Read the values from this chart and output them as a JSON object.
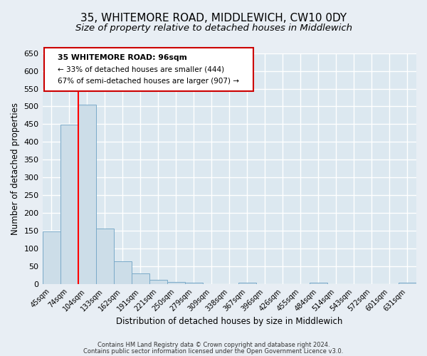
{
  "title": "35, WHITEMORE ROAD, MIDDLEWICH, CW10 0DY",
  "subtitle": "Size of property relative to detached houses in Middlewich",
  "xlabel": "Distribution of detached houses by size in Middlewich",
  "ylabel": "Number of detached properties",
  "bar_labels": [
    "45sqm",
    "74sqm",
    "104sqm",
    "133sqm",
    "162sqm",
    "191sqm",
    "221sqm",
    "250sqm",
    "279sqm",
    "309sqm",
    "338sqm",
    "367sqm",
    "396sqm",
    "426sqm",
    "455sqm",
    "484sqm",
    "514sqm",
    "543sqm",
    "572sqm",
    "601sqm",
    "631sqm"
  ],
  "bar_values": [
    148,
    448,
    505,
    157,
    65,
    31,
    12,
    7,
    5,
    0,
    0,
    5,
    0,
    0,
    0,
    5,
    0,
    0,
    0,
    0,
    5
  ],
  "bar_color": "#ccdde8",
  "bar_edge_color": "#7aaac8",
  "ylim": [
    0,
    650
  ],
  "yticks": [
    0,
    50,
    100,
    150,
    200,
    250,
    300,
    350,
    400,
    450,
    500,
    550,
    600,
    650
  ],
  "red_line_x": 1.5,
  "annotation_title": "35 WHITEMORE ROAD: 96sqm",
  "annotation_line1": "← 33% of detached houses are smaller (444)",
  "annotation_line2": "67% of semi-detached houses are larger (907) →",
  "annotation_box_color": "#ffffff",
  "annotation_box_edge": "#cc0000",
  "footer1": "Contains HM Land Registry data © Crown copyright and database right 2024.",
  "footer2": "Contains public sector information licensed under the Open Government Licence v3.0.",
  "background_color": "#e8eef4",
  "plot_bg_color": "#dce8f0",
  "grid_color": "#ffffff",
  "title_fontsize": 11,
  "subtitle_fontsize": 9.5
}
